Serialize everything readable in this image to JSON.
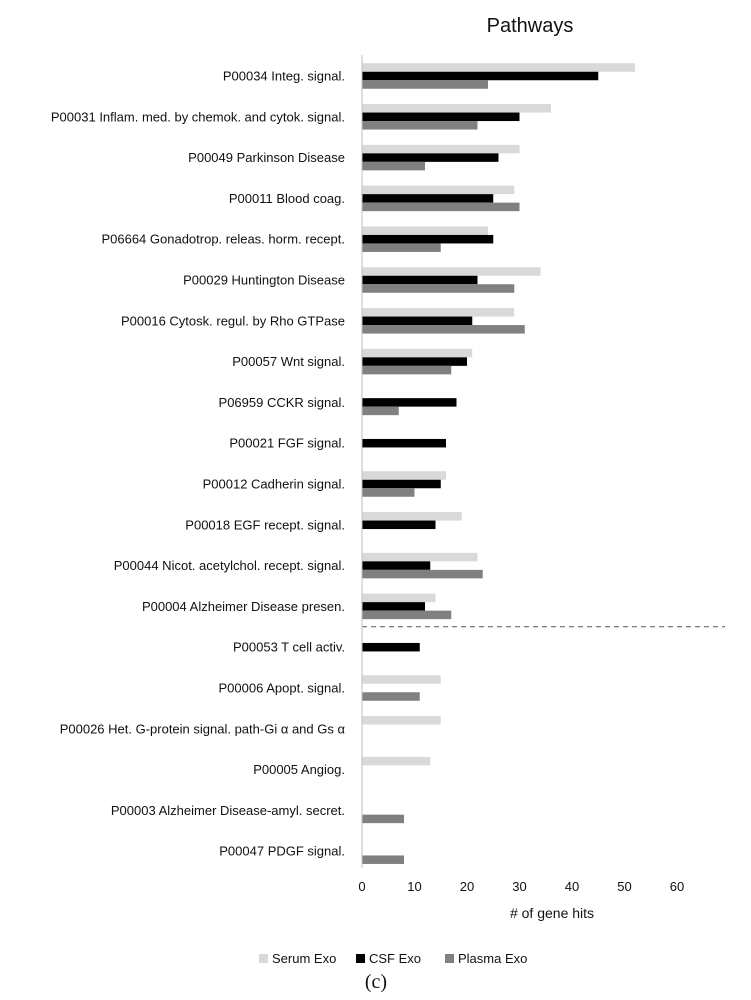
{
  "chart_data": {
    "type": "bar",
    "orientation": "horizontal",
    "title": "Pathways",
    "xlabel": "# of gene hits",
    "ylabel": "",
    "xlim": [
      0,
      60
    ],
    "xticks": [
      0,
      10,
      20,
      30,
      40,
      50,
      60
    ],
    "grid": false,
    "legend_position": "bottom",
    "panel_label": "(c)",
    "categories": [
      "P00034 Integ. signal.",
      "P00031 Inflam. med. by chemok. and cytok. signal.",
      "P00049 Parkinson Disease",
      "P00011 Blood coag.",
      "P06664 Gonadotrop. releas. horm. recept.",
      "P00029 Huntington Disease",
      "P00016 Cytosk. regul. by Rho GTPase",
      "P00057 Wnt signal.",
      "P06959 CCKR signal.",
      "P00021 FGF signal.",
      "P00012 Cadherin signal.",
      "P00018 EGF recept. signal.",
      "P00044 Nicot. acetylchol. recept. signal.",
      "P00004 Alzheimer Disease presen.",
      "P00053 T cell activ.",
      "P00006 Apopt. signal.",
      "P00026 Het. G-protein signal. path-Gi α and Gs α",
      "P00005 Angiog.",
      "P00003 Alzheimer Disease-amyl. secret.",
      "P00047 PDGF signal."
    ],
    "separator_after_index": 13,
    "series": [
      {
        "name": "Serum Exo",
        "color": "#d9d9d9",
        "values": [
          52,
          36,
          30,
          29,
          24,
          34,
          29,
          21,
          0,
          0,
          16,
          19,
          22,
          14,
          0,
          15,
          15,
          13,
          0,
          0
        ]
      },
      {
        "name": "CSF Exo",
        "color": "#000000",
        "values": [
          45,
          30,
          26,
          25,
          25,
          22,
          21,
          20,
          18,
          16,
          15,
          14,
          13,
          12,
          11,
          0,
          0,
          0,
          0,
          0
        ]
      },
      {
        "name": "Plasma Exo",
        "color": "#808080",
        "values": [
          24,
          22,
          12,
          30,
          15,
          29,
          31,
          17,
          7,
          0,
          10,
          0,
          23,
          17,
          0,
          11,
          0,
          0,
          8,
          8
        ]
      }
    ]
  }
}
